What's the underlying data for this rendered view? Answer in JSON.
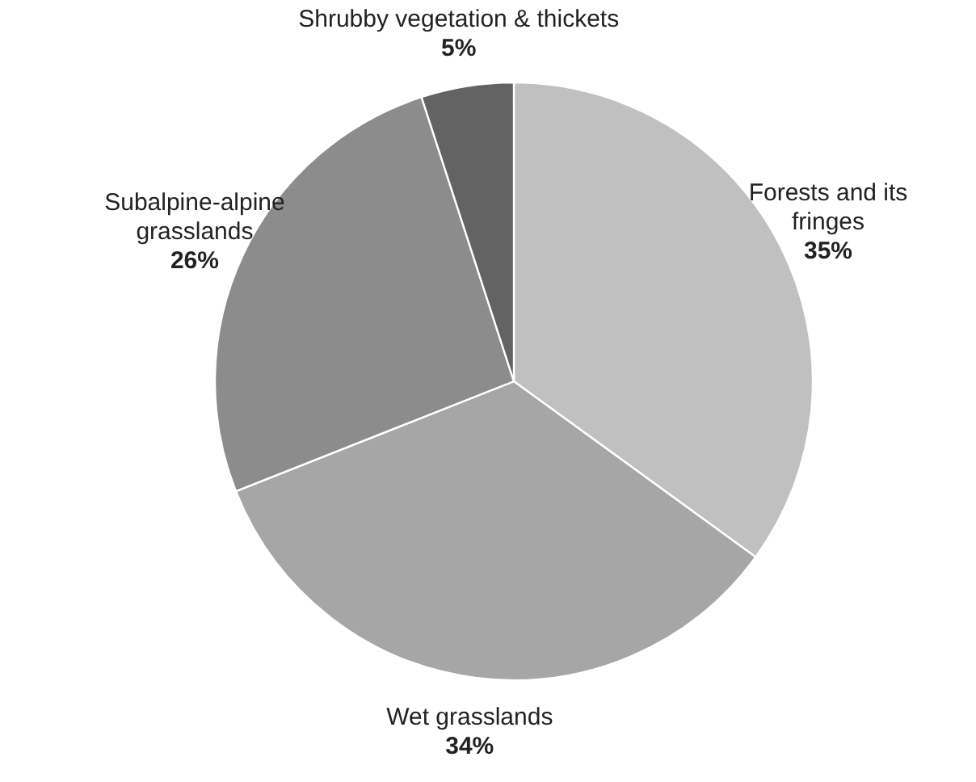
{
  "chart_data": {
    "type": "pie",
    "categories": [
      "Forests and its fringes",
      "Wet grasslands",
      "Subalpine-alpine grasslands",
      "Shrubby vegetation & thickets"
    ],
    "values": [
      35,
      34,
      26,
      5
    ],
    "colors": [
      "#c0c0c0",
      "#a6a6a6",
      "#8c8c8c",
      "#636363"
    ],
    "value_labels": [
      "35%",
      "34%",
      "26%",
      "5%"
    ]
  }
}
